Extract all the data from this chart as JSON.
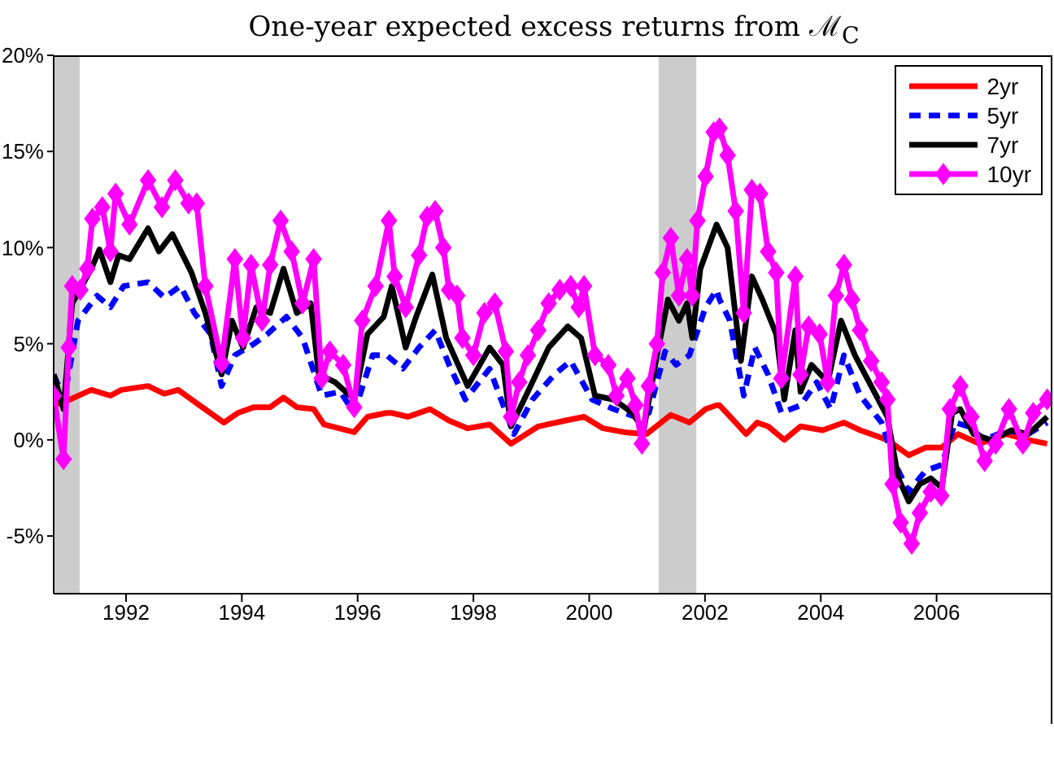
{
  "chart_data": {
    "type": "line",
    "title": "One-year expected excess returns from ℳ$_{C}$",
    "xlim": [
      1990.75,
      2008
    ],
    "xticks": [
      1992,
      1994,
      1996,
      1998,
      2000,
      2002,
      2004,
      2006
    ],
    "ylim": [
      -8,
      20
    ],
    "yticks": [
      {
        "value": -5,
        "label": "-5%"
      },
      {
        "value": 0,
        "label": "0%"
      },
      {
        "value": 5,
        "label": "5%"
      },
      {
        "value": 10,
        "label": "10%"
      },
      {
        "value": 15,
        "label": "15%"
      },
      {
        "value": 20,
        "label": "20%"
      }
    ],
    "grid": false,
    "legend": "top right",
    "bands": [
      {
        "axis": "x",
        "from": 1990.75,
        "to": 1991.2,
        "color": "#cccccc"
      },
      {
        "axis": "x",
        "from": 2001.2,
        "to": 2001.85,
        "color": "#cccccc"
      }
    ],
    "series": [
      {
        "name": "2yr",
        "color": "#ff0000",
        "line_style": "solid",
        "marker": "none",
        "x": [
          1990.75,
          1991.03,
          1991.4,
          1991.73,
          1991.92,
          1992.38,
          1992.66,
          1992.9,
          1993.27,
          1993.69,
          1993.93,
          1994.21,
          1994.49,
          1994.72,
          1994.95,
          1995.24,
          1995.42,
          1995.94,
          1996.17,
          1996.5,
          1996.59,
          1996.87,
          1997.25,
          1997.58,
          1997.9,
          1998.28,
          1998.65,
          1999.12,
          1999.58,
          1999.91,
          2000.24,
          2000.61,
          2000.99,
          2001.41,
          2001.73,
          2002.01,
          2002.2,
          2002.25,
          2002.53,
          2002.71,
          2002.9,
          2003.09,
          2003.37,
          2003.65,
          2004.03,
          2004.4,
          2004.68,
          2005.15,
          2005.52,
          2005.81,
          2006.09,
          2006.37,
          2006.74,
          2007.21,
          2007.58,
          2007.91
        ],
        "values": [
          1.8,
          2.1,
          2.6,
          2.3,
          2.6,
          2.8,
          2.4,
          2.6,
          1.8,
          0.9,
          1.4,
          1.7,
          1.7,
          2.2,
          1.7,
          1.6,
          0.8,
          0.4,
          1.2,
          1.4,
          1.4,
          1.2,
          1.6,
          1,
          0.6,
          0.8,
          -0.2,
          0.7,
          1,
          1.2,
          0.6,
          0.4,
          0.3,
          1.3,
          0.9,
          1.6,
          1.8,
          1.8,
          0.9,
          0.3,
          0.9,
          0.7,
          0,
          0.7,
          0.5,
          0.9,
          0.5,
          0,
          -0.8,
          -0.4,
          -0.4,
          0.3,
          -0.2,
          0.3,
          0,
          -0.2
        ]
      },
      {
        "name": "5yr",
        "color": "#0000ff",
        "line_style": "dashed",
        "marker": "none",
        "x": [
          1990.75,
          1990.93,
          1991.17,
          1991.5,
          1991.73,
          1991.96,
          1992.38,
          1992.66,
          1992.94,
          1993.18,
          1993.46,
          1993.65,
          1993.88,
          1994.21,
          1994.44,
          1994.77,
          1995.05,
          1995.38,
          1995.7,
          1995.94,
          1996.26,
          1996.5,
          1996.78,
          1997.06,
          1997.34,
          1997.58,
          1997.86,
          1998.28,
          1998.7,
          1999.02,
          1999.4,
          1999.68,
          2000.05,
          2000.42,
          2000.8,
          2001.03,
          2001.31,
          2001.5,
          2001.73,
          2002.01,
          2002.2,
          2002.25,
          2002.43,
          2002.67,
          2002.86,
          2003.09,
          2003.32,
          2003.65,
          2003.93,
          2004.17,
          2004.4,
          2004.68,
          2005.05,
          2005.29,
          2005.52,
          2005.81,
          2006.09,
          2006.32,
          2006.55,
          2006.83,
          2007.21,
          2007.58,
          2007.91
        ],
        "values": [
          3.4,
          2.1,
          6.2,
          7.5,
          6.9,
          8,
          8.2,
          7.4,
          8,
          6.6,
          5.5,
          2.8,
          4.4,
          5,
          5.5,
          6.4,
          5.3,
          2.3,
          2.5,
          1.4,
          4.4,
          4.4,
          3.7,
          4.8,
          5.7,
          3.9,
          2.1,
          3.7,
          0.3,
          2.1,
          3.4,
          4.1,
          2.1,
          1.6,
          1.2,
          1.4,
          4.6,
          3.9,
          4.4,
          6.9,
          7.8,
          7.3,
          6.2,
          2.3,
          4.8,
          3.4,
          1.4,
          1.8,
          3,
          1.6,
          4.4,
          2.3,
          0.9,
          -1.3,
          -2.7,
          -1.6,
          -1.3,
          0.9,
          0.7,
          0,
          0.5,
          0.3,
          0.9
        ]
      },
      {
        "name": "7yr",
        "color": "#000000",
        "line_style": "solid",
        "marker": "none",
        "x": [
          1990.75,
          1990.92,
          1991.07,
          1991.4,
          1991.54,
          1991.73,
          1991.87,
          1992.06,
          1992.38,
          1992.57,
          1992.8,
          1993.13,
          1993.37,
          1993.65,
          1993.83,
          1994.02,
          1994.25,
          1994.49,
          1994.72,
          1994.95,
          1995.19,
          1995.33,
          1995.61,
          1995.94,
          1996.17,
          1996.45,
          1996.59,
          1996.83,
          1997.01,
          1997.29,
          1997.53,
          1997.9,
          1998.28,
          1998.51,
          1998.65,
          1998.94,
          1999.3,
          1999.63,
          1999.86,
          2000.1,
          2000.42,
          2000.75,
          2000.94,
          2001.17,
          2001.36,
          2001.55,
          2001.69,
          2001.78,
          2001.92,
          2002.2,
          2002.39,
          2002.62,
          2002.81,
          2002.99,
          2003.23,
          2003.37,
          2003.56,
          2003.65,
          2003.84,
          2004.12,
          2004.35,
          2004.59,
          2004.87,
          2005.15,
          2005.34,
          2005.52,
          2005.71,
          2005.9,
          2006.09,
          2006.27,
          2006.41,
          2006.64,
          2006.93,
          2007.3,
          2007.58,
          2007.91
        ],
        "values": [
          3.4,
          1.6,
          7.1,
          8.9,
          9.9,
          8.2,
          9.6,
          9.4,
          11,
          9.8,
          10.7,
          8.7,
          6.6,
          3.4,
          6.2,
          4.8,
          6.9,
          6.6,
          8.9,
          6.6,
          7.1,
          3.4,
          3,
          2.1,
          5.5,
          6.4,
          8,
          4.8,
          6.4,
          8.6,
          5.3,
          2.8,
          4.8,
          3.9,
          0.7,
          2.5,
          4.8,
          5.9,
          5.3,
          2.3,
          2.1,
          1.4,
          0.5,
          4.4,
          7.3,
          6.2,
          7.1,
          5.3,
          8.9,
          11.2,
          10,
          4.1,
          8.5,
          7.3,
          5.5,
          2.1,
          5.7,
          2.5,
          3.9,
          3,
          6.2,
          4.4,
          2.8,
          1.2,
          -2,
          -3.2,
          -2.3,
          -2,
          -2.5,
          1.4,
          1.6,
          0.3,
          0,
          0.5,
          0.3,
          1.2
        ]
      },
      {
        "name": "10yr",
        "color": "#ff00ff",
        "line_style": "solid",
        "marker": "diamond",
        "x": [
          1990.75,
          1990.92,
          1991.01,
          1991.07,
          1991.21,
          1991.33,
          1991.42,
          1991.59,
          1991.73,
          1991.82,
          1992.06,
          1992.38,
          1992.62,
          1992.85,
          1993.08,
          1993.22,
          1993.37,
          1993.65,
          1993.88,
          1994.02,
          1994.16,
          1994.35,
          1994.49,
          1994.67,
          1994.86,
          1995.05,
          1995.24,
          1995.38,
          1995.52,
          1995.75,
          1995.94,
          1996.08,
          1996.31,
          1996.54,
          1996.64,
          1996.83,
          1997.06,
          1997.2,
          1997.34,
          1997.48,
          1997.58,
          1997.72,
          1997.81,
          1998,
          1998.19,
          1998.37,
          1998.56,
          1998.65,
          1998.79,
          1998.94,
          1999.12,
          1999.3,
          1999.49,
          1999.68,
          1999.82,
          1999.91,
          2000.1,
          2000.33,
          2000.47,
          2000.66,
          2000.8,
          2000.91,
          2001.03,
          2001.17,
          2001.27,
          2001.41,
          2001.55,
          2001.69,
          2001.78,
          2001.87,
          2002.01,
          2002.15,
          2002.25,
          2002.39,
          2002.53,
          2002.67,
          2002.81,
          2002.95,
          2003.09,
          2003.23,
          2003.32,
          2003.56,
          2003.65,
          2003.79,
          2003.98,
          2004.12,
          2004.26,
          2004.4,
          2004.54,
          2004.68,
          2004.87,
          2005.05,
          2005.15,
          2005.24,
          2005.38,
          2005.57,
          2005.71,
          2005.9,
          2006.08,
          2006.23,
          2006.41,
          2006.6,
          2006.83,
          2007.02,
          2007.25,
          2007.49,
          2007.67,
          2007.91
        ],
        "values": [
          2.3,
          -1,
          4.8,
          8,
          7.8,
          8.9,
          11.5,
          12.1,
          9.8,
          12.8,
          11.2,
          13.5,
          12.1,
          13.5,
          12.3,
          12.3,
          8,
          4,
          9.4,
          5.3,
          9.1,
          6.2,
          9.1,
          11.4,
          9.8,
          7.1,
          9.4,
          3.2,
          4.6,
          3.9,
          1.7,
          6.2,
          8,
          11.4,
          8.5,
          6.9,
          9.6,
          11.6,
          11.9,
          10,
          7.8,
          7.5,
          5.3,
          4.4,
          6.6,
          7.1,
          4.6,
          1.2,
          3,
          4.4,
          5.7,
          7.1,
          7.8,
          8,
          6.9,
          8,
          4.4,
          3.9,
          2.3,
          3.2,
          1.8,
          -0.2,
          2.8,
          5,
          8.7,
          10.5,
          7.5,
          9.4,
          7.5,
          11.4,
          13.7,
          16,
          16.2,
          14.8,
          11.9,
          6.6,
          13,
          12.8,
          9.8,
          8.7,
          3.2,
          8.5,
          3.4,
          5.9,
          5.5,
          3,
          7.5,
          9.1,
          7.3,
          5.7,
          4.1,
          3,
          2.1,
          -2.3,
          -4.3,
          -5.4,
          -3.8,
          -2.7,
          -2.9,
          1.6,
          2.8,
          1.2,
          -1.1,
          -0.2,
          1.6,
          -0.2,
          1.4,
          2.1
        ]
      }
    ]
  }
}
